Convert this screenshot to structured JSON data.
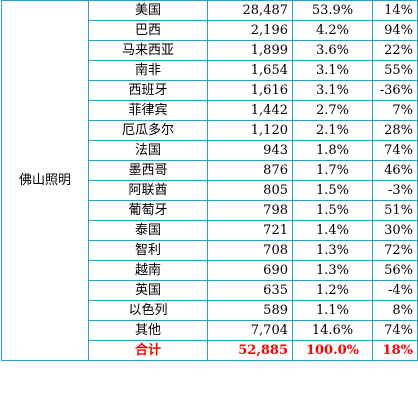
{
  "group_label": "佛山照明",
  "rows": [
    {
      "country": "美国",
      "amount": "28,487",
      "share": "53.9%",
      "growth": "14%"
    },
    {
      "country": "巴西",
      "amount": "2,196",
      "share": "4.2%",
      "growth": "94%"
    },
    {
      "country": "马来西亚",
      "amount": "1,899",
      "share": "3.6%",
      "growth": "22%"
    },
    {
      "country": "南非",
      "amount": "1,654",
      "share": "3.1%",
      "growth": "55%"
    },
    {
      "country": "西班牙",
      "amount": "1,616",
      "share": "3.1%",
      "growth": "-36%"
    },
    {
      "country": "菲律宾",
      "amount": "1,442",
      "share": "2.7%",
      "growth": "7%"
    },
    {
      "country": "厄瓜多尔",
      "amount": "1,120",
      "share": "2.1%",
      "growth": "28%"
    },
    {
      "country": "法国",
      "amount": "943",
      "share": "1.8%",
      "growth": "74%"
    },
    {
      "country": "墨西哥",
      "amount": "876",
      "share": "1.7%",
      "growth": "46%"
    },
    {
      "country": "阿联酋",
      "amount": "805",
      "share": "1.5%",
      "growth": "-3%"
    },
    {
      "country": "葡萄牙",
      "amount": "798",
      "share": "1.5%",
      "growth": "51%"
    },
    {
      "country": "泰国",
      "amount": "721",
      "share": "1.4%",
      "growth": "30%"
    },
    {
      "country": "智利",
      "amount": "708",
      "share": "1.3%",
      "growth": "72%"
    },
    {
      "country": "越南",
      "amount": "690",
      "share": "1.3%",
      "growth": "56%"
    },
    {
      "country": "英国",
      "amount": "635",
      "share": "1.2%",
      "growth": "-4%"
    },
    {
      "country": "以色列",
      "amount": "589",
      "share": "1.1%",
      "growth": "8%"
    },
    {
      "country": "其他",
      "amount": "7,704",
      "share": "14.6%",
      "growth": "74%"
    }
  ],
  "total": {
    "country": "合计",
    "amount": "52,885",
    "share": "100.0%",
    "growth": "18%"
  },
  "colors": {
    "border": "#2c9fc9",
    "total_text": "#ff0000"
  }
}
